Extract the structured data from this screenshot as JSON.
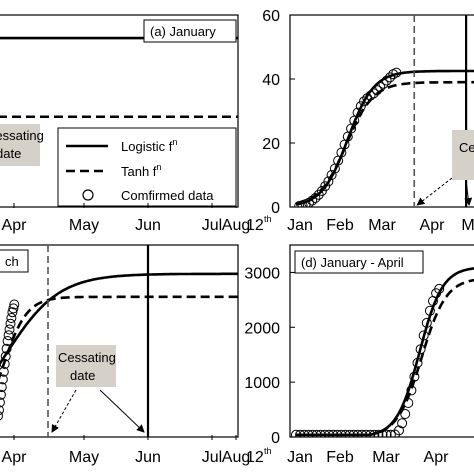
{
  "chart_data": [
    {
      "panel_label": "(a) January",
      "type": "line",
      "x_ticks": [
        "Apr",
        "May",
        "Jun",
        "Jul",
        "Aug"
      ],
      "x_suffix": "12",
      "x_suffix_sup": "th",
      "series": [
        {
          "name": "Logistic f",
          "sup": "n",
          "style": "solid",
          "level": 0.88
        },
        {
          "name": "Tanh f",
          "sup": "n",
          "style": "dashed",
          "level": 0.47
        },
        {
          "name": "Comfirmed data",
          "style": "circle"
        }
      ],
      "annotation": {
        "lines": [
          "Cessating",
          "date"
        ]
      }
    },
    {
      "type": "line",
      "x_ticks": [
        "Jan",
        "Feb",
        "Mar",
        "Apr"
      ],
      "x_ticks_cut": [
        "M"
      ],
      "y_ticks": [
        "0",
        "20",
        "40",
        "60"
      ],
      "ylim": [
        0,
        60
      ],
      "plateaus": {
        "logistic": 42.5,
        "tanh": 39
      },
      "confirmed": [
        [
          0.2,
          0.3
        ],
        [
          0.4,
          0.6
        ],
        [
          0.6,
          0.9
        ],
        [
          0.8,
          1.3
        ],
        [
          1.0,
          2.0
        ],
        [
          1.2,
          2.8
        ],
        [
          1.4,
          3.8
        ],
        [
          1.6,
          5.0
        ],
        [
          1.8,
          6.5
        ],
        [
          2.0,
          8.0
        ],
        [
          2.2,
          10.0
        ],
        [
          2.4,
          12.0
        ],
        [
          2.6,
          14.5
        ],
        [
          2.8,
          17.0
        ],
        [
          3.0,
          19.5
        ],
        [
          3.2,
          22.0
        ],
        [
          3.4,
          24.5
        ],
        [
          3.6,
          27.0
        ],
        [
          3.8,
          29.5
        ],
        [
          4.0,
          31.5
        ],
        [
          4.2,
          33.0
        ],
        [
          4.4,
          34.0
        ],
        [
          4.6,
          34.8
        ],
        [
          4.8,
          35.5
        ],
        [
          5.0,
          36.5
        ],
        [
          5.2,
          37.5
        ],
        [
          5.4,
          38.5
        ],
        [
          5.6,
          39.5
        ],
        [
          5.8,
          40.5
        ],
        [
          6.0,
          41.5
        ],
        [
          6.2,
          42.0
        ]
      ],
      "cessating_dates": {
        "tanh": 7.3,
        "logistic": 10.5
      },
      "annotation": {
        "lines": [
          "Ce"
        ]
      }
    },
    {
      "panel_label": "ch",
      "type": "line",
      "x_ticks": [
        "Apr",
        "May",
        "Jun",
        "Jul",
        "Aug"
      ],
      "x_suffix": "12",
      "x_suffix_sup": "th",
      "plateaus": {
        "logistic": 0.85,
        "tanh": 0.73
      },
      "cessating_dates": {
        "tanh": 0.31,
        "logistic": 0.95
      },
      "confirmed": [
        [
          0.0,
          0.11
        ],
        [
          0.004,
          0.14
        ],
        [
          0.008,
          0.18
        ],
        [
          0.012,
          0.22
        ],
        [
          0.016,
          0.26
        ],
        [
          0.02,
          0.3
        ],
        [
          0.024,
          0.34
        ],
        [
          0.028,
          0.38
        ],
        [
          0.032,
          0.42
        ],
        [
          0.036,
          0.46
        ],
        [
          0.04,
          0.5
        ],
        [
          0.044,
          0.53
        ],
        [
          0.048,
          0.56
        ],
        [
          0.052,
          0.59
        ],
        [
          0.056,
          0.62
        ],
        [
          0.06,
          0.65
        ],
        [
          0.064,
          0.67
        ],
        [
          0.068,
          0.69
        ]
      ],
      "annotation": {
        "lines": [
          "Cessating",
          "date"
        ]
      }
    },
    {
      "panel_label": "(d) January - April",
      "type": "line",
      "x_ticks": [
        "Jan",
        "Feb",
        "Mar",
        "Apr"
      ],
      "y_ticks": [
        "0",
        "1000",
        "2000",
        "3000"
      ],
      "ylim": [
        0,
        3500
      ],
      "confirmed": [
        [
          0.0,
          40
        ],
        [
          0.4,
          40
        ],
        [
          0.8,
          40
        ],
        [
          1.2,
          40
        ],
        [
          1.6,
          40
        ],
        [
          2.0,
          40
        ],
        [
          2.4,
          40
        ],
        [
          2.8,
          40
        ],
        [
          3.2,
          40
        ],
        [
          3.6,
          40
        ],
        [
          4.0,
          40
        ],
        [
          4.4,
          40
        ],
        [
          4.8,
          40
        ],
        [
          5.2,
          40
        ],
        [
          5.6,
          40
        ],
        [
          6.0,
          40
        ],
        [
          6.4,
          40
        ],
        [
          6.8,
          40
        ],
        [
          7.2,
          40
        ],
        [
          7.6,
          40
        ],
        [
          8.0,
          40
        ],
        [
          8.4,
          40
        ],
        [
          8.8,
          40
        ],
        [
          9.2,
          40
        ],
        [
          9.6,
          45
        ],
        [
          10.0,
          120
        ],
        [
          10.3,
          250
        ],
        [
          10.6,
          420
        ],
        [
          10.9,
          620
        ],
        [
          11.2,
          850
        ],
        [
          11.5,
          1100
        ],
        [
          11.8,
          1350
        ],
        [
          12.1,
          1600
        ],
        [
          12.4,
          1850
        ],
        [
          12.7,
          2080
        ],
        [
          13.0,
          2300
        ],
        [
          13.3,
          2480
        ],
        [
          13.6,
          2620
        ],
        [
          13.9,
          2700
        ]
      ]
    }
  ]
}
